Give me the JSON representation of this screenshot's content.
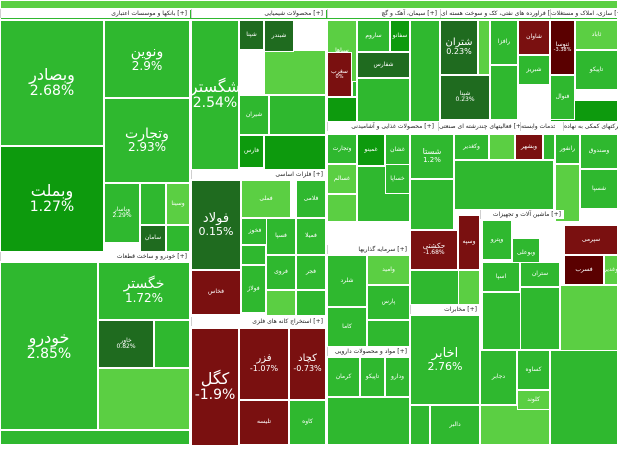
{
  "chart_data": {
    "type": "treemap",
    "colors": {
      "strong_up": "#0d9a0d",
      "up": "#2fb82f",
      "light_up": "#5bcf43",
      "flat": "#1f6b1f",
      "down": "#7a1010",
      "strong_down": "#5a0000"
    },
    "sectors": [
      {
        "label": "بانکها و موسسات اعتباری [+]"
      },
      {
        "label": "محصولات شیمیایی [+]"
      },
      {
        "label": "سیمان، آهک و گچ [+]"
      },
      {
        "label": "فراورده های نفتی، کک و سوخت هسته ای [+]"
      },
      {
        "label": "سازی، املاک و مستغلات [+]"
      },
      {
        "label": "خودرو و ساخت قطعات [+]"
      },
      {
        "label": "فلزات اساسی [+]"
      },
      {
        "label": "محصولات غذایی و آشامیدنی [+]"
      },
      {
        "label": "فعالیتهای چندرشته ای صنعتی [+]"
      },
      {
        "label": "زراعت و خدمات وابسته [+]"
      },
      {
        "label": "شرکتهای کمکی به نهاده [+]"
      },
      {
        "label": "سرمایه گذاریها [+]"
      },
      {
        "label": "ماشین آلات و تجهیزات [+]"
      },
      {
        "label": "استخراج کانه های فلزی [+]"
      },
      {
        "label": "مخابرات [+]"
      },
      {
        "label": "مواد و محصولات دارویی [+]"
      }
    ],
    "tiles": [
      {
        "name": "وبصادر",
        "pct": "2.68%",
        "c": "up"
      },
      {
        "name": "ونوین",
        "pct": "2.9%",
        "c": "up"
      },
      {
        "name": "وتجارت",
        "pct": "2.93%",
        "c": "up"
      },
      {
        "name": "وبملت",
        "pct": "1.27%",
        "c": "strong_up"
      },
      {
        "name": "وسینا",
        "pct": "",
        "c": "light_up"
      },
      {
        "name": "وپاسار",
        "pct": "2.29%",
        "c": "up"
      },
      {
        "name": "سامان",
        "pct": "",
        "c": "flat"
      },
      {
        "name": "شگستر",
        "pct": "2.54%",
        "c": "up"
      },
      {
        "name": "شپنا",
        "pct": "",
        "c": "flat"
      },
      {
        "name": "شبندر",
        "pct": "",
        "c": "flat"
      },
      {
        "name": "شیران",
        "pct": "",
        "c": "up"
      },
      {
        "name": "فارس",
        "pct": "",
        "c": "strong_up"
      },
      {
        "name": "سپاها",
        "pct": "",
        "c": "light_up"
      },
      {
        "name": "ساروم",
        "pct": "",
        "c": "up"
      },
      {
        "name": "سغرب",
        "pct": "0%",
        "c": "down"
      },
      {
        "name": "سفانو",
        "pct": "",
        "c": "strong_up"
      },
      {
        "name": "شفارس",
        "pct": "",
        "c": "flat"
      },
      {
        "name": "شتران",
        "pct": "0.23%",
        "c": "flat"
      },
      {
        "name": "شبریز",
        "pct": "",
        "c": "up"
      },
      {
        "name": "شپنا",
        "pct": "0.23%",
        "c": "flat"
      },
      {
        "name": "شاوان",
        "pct": "",
        "c": "down"
      },
      {
        "name": "رافزا",
        "pct": "",
        "c": "up"
      },
      {
        "name": "ثنوسا",
        "pct": "-3.38%",
        "c": "strong_down"
      },
      {
        "name": "ثاباد",
        "pct": "",
        "c": "light_up"
      },
      {
        "name": "وتجارت",
        "pct": "",
        "c": "up"
      },
      {
        "name": "غمینو",
        "pct": "",
        "c": "strong_up"
      },
      {
        "name": "غشان",
        "pct": "",
        "c": "up"
      },
      {
        "name": "غسالم",
        "pct": "",
        "c": "light_up"
      },
      {
        "name": "خساپا",
        "pct": "",
        "c": "up"
      },
      {
        "name": "وبشهر",
        "pct": "",
        "c": "down"
      },
      {
        "name": "وکغدیر",
        "pct": "",
        "c": "up"
      },
      {
        "name": "شستا",
        "pct": "1.2%",
        "c": "up"
      },
      {
        "name": "فولاد",
        "pct": "0.15%",
        "c": "flat"
      },
      {
        "name": "فملی",
        "pct": "",
        "c": "light_up"
      },
      {
        "name": "فخوز",
        "pct": "",
        "c": "up"
      },
      {
        "name": "فخاس",
        "pct": "",
        "c": "down"
      },
      {
        "name": "فولاژ",
        "pct": "",
        "c": "up"
      },
      {
        "name": "فسپا",
        "pct": "",
        "c": "up"
      },
      {
        "name": "فمیلا",
        "pct": "",
        "c": "up"
      },
      {
        "name": "فلامی",
        "pct": "",
        "c": "up"
      },
      {
        "name": "فروی",
        "pct": "",
        "c": "up"
      },
      {
        "name": "فجر",
        "pct": "",
        "c": "up"
      },
      {
        "name": "حکشتی",
        "pct": "-1.68%",
        "c": "down"
      },
      {
        "name": "وسپه",
        "pct": "",
        "c": "down"
      },
      {
        "name": "وپترو",
        "pct": "",
        "c": "up"
      },
      {
        "name": "وبوعلی",
        "pct": "",
        "c": "up"
      },
      {
        "name": "اخابر",
        "pct": "2.76%",
        "c": "up"
      },
      {
        "name": "خودرو",
        "pct": "2.85%",
        "c": "up"
      },
      {
        "name": "خگستر",
        "pct": "1.72%",
        "c": "up"
      },
      {
        "name": "خاور",
        "pct": "0.82%",
        "c": "flat"
      },
      {
        "name": "کگل",
        "pct": "-1.9%",
        "c": "down"
      },
      {
        "name": "فزر",
        "pct": "-1.07%",
        "c": "down"
      },
      {
        "name": "کچاد",
        "pct": "-0.73%",
        "c": "down"
      },
      {
        "name": "تلیسه",
        "pct": "",
        "c": "down"
      },
      {
        "name": "کاوه",
        "pct": "",
        "c": "up"
      },
      {
        "name": "کرمان",
        "pct": "",
        "c": "up"
      },
      {
        "name": "تاپیکو",
        "pct": "",
        "c": "up"
      },
      {
        "name": "ودارو",
        "pct": "",
        "c": "up"
      },
      {
        "name": "دالبر",
        "pct": "",
        "c": "up"
      },
      {
        "name": "دجابر",
        "pct": "",
        "c": "up"
      },
      {
        "name": "کساوه",
        "pct": "",
        "c": "up"
      },
      {
        "name": "کلوند",
        "pct": "",
        "c": "light_up"
      },
      {
        "name": "شلرد",
        "pct": "",
        "c": "up"
      },
      {
        "name": "وامید",
        "pct": "",
        "c": "light_up"
      },
      {
        "name": "کاما",
        "pct": "",
        "c": "up"
      },
      {
        "name": "پارس",
        "pct": "",
        "c": "up"
      },
      {
        "name": "اسپا",
        "pct": "",
        "c": "up"
      },
      {
        "name": "ستران",
        "pct": "",
        "c": "up"
      },
      {
        "name": "سپرمی",
        "pct": "",
        "c": "down"
      },
      {
        "name": "فسرب",
        "pct": "",
        "c": "strong_down"
      },
      {
        "name": "وغدیر",
        "pct": "",
        "c": "light_up"
      },
      {
        "name": "رانفور",
        "pct": "",
        "c": "up"
      },
      {
        "name": "وصندوق",
        "pct": "",
        "c": "up"
      },
      {
        "name": "شسپا",
        "pct": "",
        "c": "up"
      },
      {
        "name": "فنوال",
        "pct": "",
        "c": "up"
      },
      {
        "name": "تاپیکو",
        "pct": "",
        "c": "up"
      },
      {
        "name": "شکبیر",
        "pct": "",
        "c": "up"
      }
    ]
  }
}
